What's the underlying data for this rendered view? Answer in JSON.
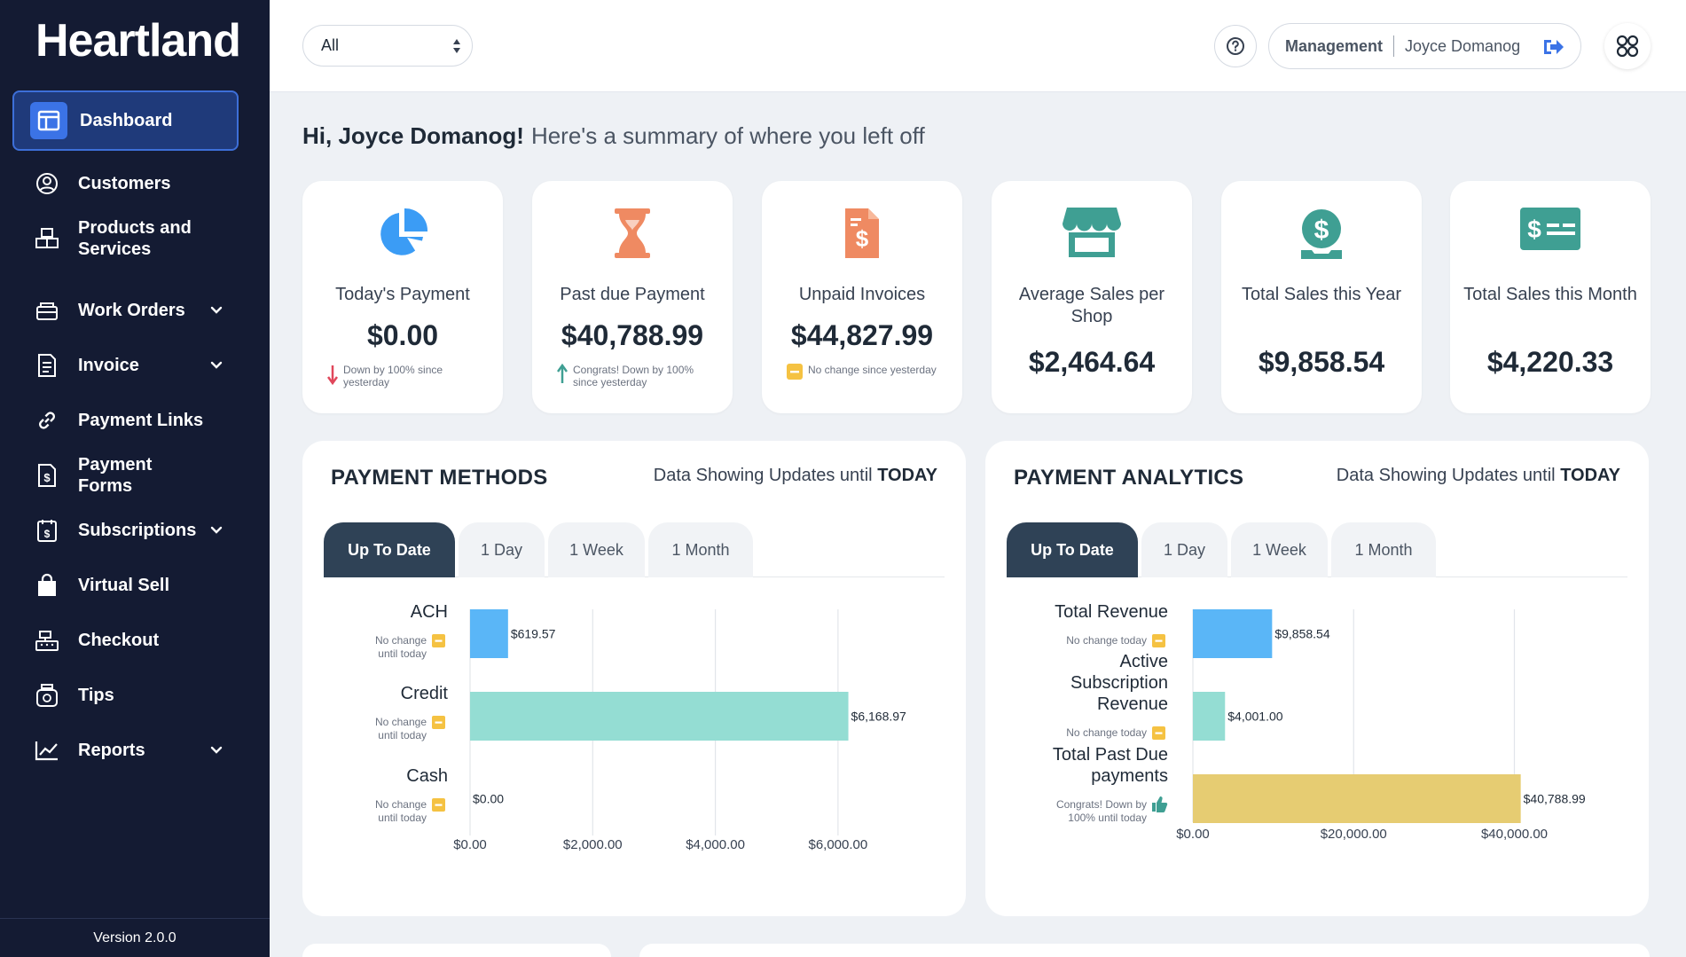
{
  "sidebar": {
    "logo": "Heartland",
    "items": [
      {
        "label": "Dashboard",
        "icon": "dashboard-icon",
        "active": true,
        "chevron": false
      },
      {
        "label": "Customers",
        "icon": "user-circle-icon",
        "active": false,
        "chevron": false
      },
      {
        "label": "Products and Services",
        "icon": "boxes-icon",
        "active": false,
        "chevron": false
      },
      {
        "label": "Work Orders",
        "icon": "work-orders-icon",
        "active": false,
        "chevron": true
      },
      {
        "label": "Invoice",
        "icon": "invoice-icon",
        "active": false,
        "chevron": true
      },
      {
        "label": "Payment Links",
        "icon": "link-icon",
        "active": false,
        "chevron": false
      },
      {
        "label": "Payment Forms",
        "icon": "payment-form-icon",
        "active": false,
        "chevron": false
      },
      {
        "label": "Subscriptions",
        "icon": "subscriptions-icon",
        "active": false,
        "chevron": true
      },
      {
        "label": "Virtual Sell",
        "icon": "shopping-bag-icon",
        "active": false,
        "chevron": false
      },
      {
        "label": "Checkout",
        "icon": "cash-register-icon",
        "active": false,
        "chevron": false
      },
      {
        "label": "Tips",
        "icon": "tips-jar-icon",
        "active": false,
        "chevron": false
      },
      {
        "label": "Reports",
        "icon": "chart-line-icon",
        "active": false,
        "chevron": true
      }
    ],
    "version": "Version 2.0.0"
  },
  "topbar": {
    "filter_value": "All",
    "role": "Management",
    "user_name": "Joyce Domanog"
  },
  "greeting": {
    "hi": "Hi, Joyce Domanog!",
    "sub": "Here's a summary of where you left off"
  },
  "cards": [
    {
      "title": "Today's Payment",
      "value": "$0.00",
      "note": "Down by 100% since yesterday",
      "note_icon": "arrow-down-icon",
      "color": "#3b9cf5"
    },
    {
      "title": "Past due Payment",
      "value": "$40,788.99",
      "note": "Congrats! Down by 100% since yesterday",
      "note_icon": "arrow-up-icon",
      "color": "#ef8a62"
    },
    {
      "title": "Unpaid Invoices",
      "value": "$44,827.99",
      "note": "No change since yesterday",
      "note_icon": "minus-icon",
      "color": "#ef8a62"
    },
    {
      "title": "Average Sales per Shop",
      "value": "$2,464.64",
      "note": "",
      "note_icon": "",
      "color": "#3f9f93"
    },
    {
      "title": "Total Sales this Year",
      "value": "$9,858.54",
      "note": "",
      "note_icon": "",
      "color": "#3f9f93"
    },
    {
      "title": "Total Sales this Month",
      "value": "$4,220.33",
      "note": "",
      "note_icon": "",
      "color": "#3f9f93"
    }
  ],
  "payment_methods": {
    "title": "PAYMENT METHODS",
    "updates_prefix": "Data Showing Updates until",
    "updates_suffix": "TODAY",
    "tabs": [
      "Up To Date",
      "1 Day",
      "1 Week",
      "1 Month"
    ],
    "active_tab": "Up To Date"
  },
  "payment_analytics": {
    "title": "PAYMENT ANALYTICS",
    "updates_prefix": "Data Showing Updates until",
    "updates_suffix": "TODAY",
    "tabs": [
      "Up To Date",
      "1 Day",
      "1 Week",
      "1 Month"
    ],
    "active_tab": "Up To Date"
  },
  "chart_data": [
    {
      "type": "bar",
      "orientation": "horizontal",
      "categories": [
        "ACH",
        "Credit",
        "Cash"
      ],
      "values": [
        619.57,
        6168.97,
        0.0
      ],
      "value_labels": [
        "$619.57",
        "$6,168.97",
        "$0.00"
      ],
      "notes": [
        "No change until today",
        "No change until today",
        "No change until today"
      ],
      "colors": [
        "#5ab6f7",
        "#94ddd3",
        "#e6cc72"
      ],
      "xticks": [
        "$0.00",
        "$2,000.00",
        "$4,000.00",
        "$6,000.00"
      ],
      "xlim": [
        0,
        7000
      ],
      "grid": true
    },
    {
      "type": "bar",
      "orientation": "horizontal",
      "categories": [
        "Total Revenue",
        "Active Subscription Revenue",
        "Total Past Due payments"
      ],
      "values": [
        9858.54,
        4001.0,
        40788.99
      ],
      "value_labels": [
        "$9,858.54",
        "$4,001.00",
        "$40,788.99"
      ],
      "notes": [
        "No change today",
        "No change today",
        "Congrats! Down by 100% until today"
      ],
      "colors": [
        "#5ab6f7",
        "#94ddd3",
        "#e6cc72"
      ],
      "xticks": [
        "$0.00",
        "$20,000.00",
        "$40,000.00"
      ],
      "xlim": [
        0,
        48000
      ],
      "grid": true
    }
  ]
}
